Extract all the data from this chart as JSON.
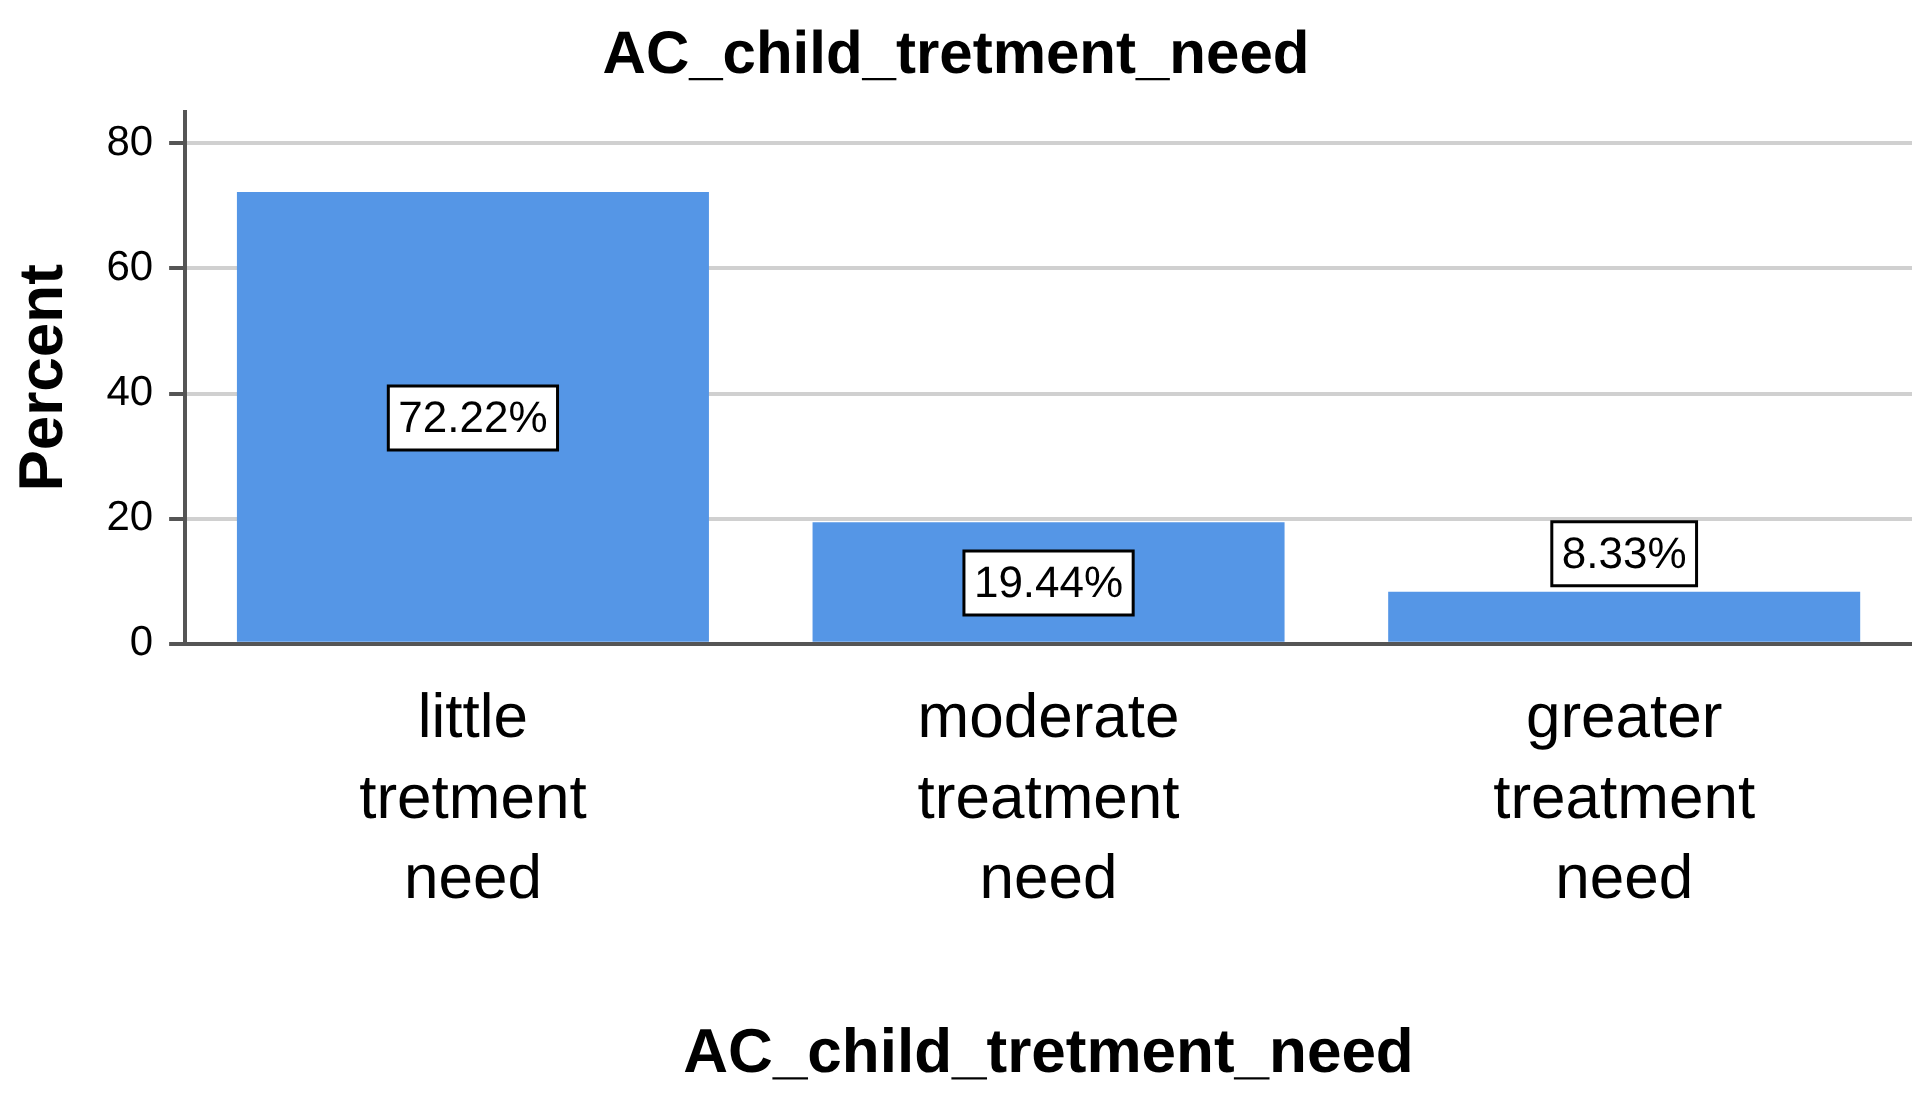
{
  "chart_data": {
    "type": "bar",
    "title": "AC_child_tretment_need",
    "xlabel": "AC_child_tretment_need",
    "ylabel": "Percent",
    "categories": [
      "little tretment need",
      "moderate treatment need",
      "greater treatment need"
    ],
    "values": [
      72.22,
      19.44,
      8.33
    ],
    "value_labels": [
      "72.22%",
      "19.44%",
      "8.33%"
    ],
    "color": "#5596e6",
    "ylim": [
      0,
      85
    ],
    "yticks": [
      0,
      20,
      40,
      60,
      80
    ],
    "grid": "y",
    "legend": false
  }
}
